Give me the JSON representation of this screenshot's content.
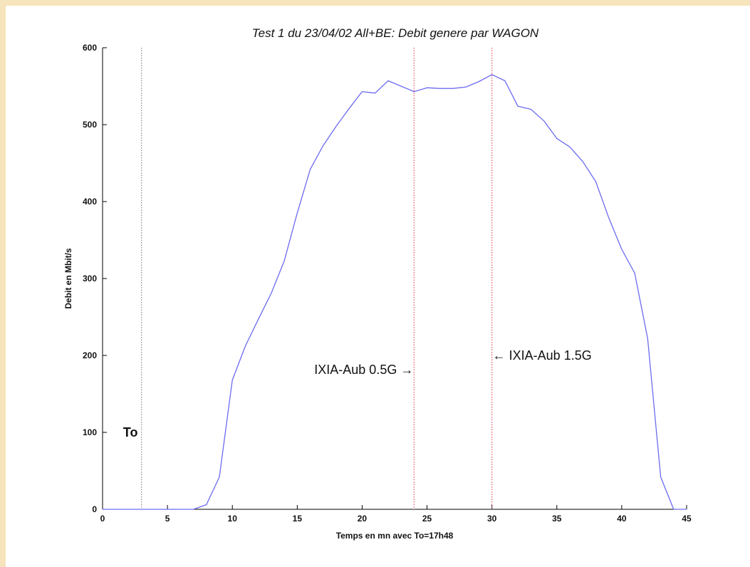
{
  "chart_data": {
    "type": "line",
    "title": "Test 1 du 23/04/02 All+BE: Debit genere par WAGON",
    "xlabel": "Temps en mn avec To=17h48",
    "ylabel": "Debit en Mbit/s",
    "xlim": [
      0,
      45
    ],
    "ylim": [
      0,
      600
    ],
    "xticks": [
      0,
      5,
      10,
      15,
      20,
      25,
      30,
      35,
      40,
      45
    ],
    "yticks": [
      0,
      100,
      200,
      300,
      400,
      500,
      600
    ],
    "grid": false,
    "series": [
      {
        "color": "#6b6bf0",
        "points": [
          [
            0,
            0
          ],
          [
            1,
            0
          ],
          [
            2,
            0
          ],
          [
            3,
            0
          ],
          [
            4,
            0
          ],
          [
            5,
            0
          ],
          [
            6,
            0
          ],
          [
            7,
            0
          ],
          [
            8,
            6
          ],
          [
            9,
            42
          ],
          [
            10,
            168
          ],
          [
            11,
            212
          ],
          [
            12,
            247
          ],
          [
            13,
            281
          ],
          [
            14,
            323
          ],
          [
            15,
            385
          ],
          [
            16,
            442
          ],
          [
            17,
            473
          ],
          [
            18,
            498
          ],
          [
            19,
            521
          ],
          [
            20,
            543
          ],
          [
            21,
            541
          ],
          [
            22,
            557
          ],
          [
            23,
            550
          ],
          [
            24,
            543
          ],
          [
            25,
            548
          ],
          [
            26,
            547
          ],
          [
            27,
            547
          ],
          [
            28,
            549
          ],
          [
            29,
            556
          ],
          [
            30,
            565
          ],
          [
            31,
            557
          ],
          [
            32,
            524
          ],
          [
            33,
            520
          ],
          [
            34,
            505
          ],
          [
            35,
            482
          ],
          [
            36,
            471
          ],
          [
            37,
            452
          ],
          [
            38,
            426
          ],
          [
            39,
            379
          ],
          [
            40,
            338
          ],
          [
            41,
            307
          ],
          [
            42,
            222
          ],
          [
            43,
            42
          ],
          [
            44,
            0
          ],
          [
            45,
            0
          ]
        ]
      }
    ],
    "vlines": [
      {
        "x": 3,
        "color": "#888888",
        "style": "dotted"
      },
      {
        "x": 24,
        "color": "#e0506a",
        "style": "dotted"
      },
      {
        "x": 30,
        "color": "#e0506a",
        "style": "dotted"
      }
    ],
    "annotations": [
      {
        "text": "To",
        "x": 2,
        "y": 100
      },
      {
        "text": "IXIA-Aub 0.5G →",
        "x": 24,
        "y": 150
      },
      {
        "text": "← IXIA-Aub 1.5G",
        "x": 30,
        "y": 200
      }
    ]
  }
}
